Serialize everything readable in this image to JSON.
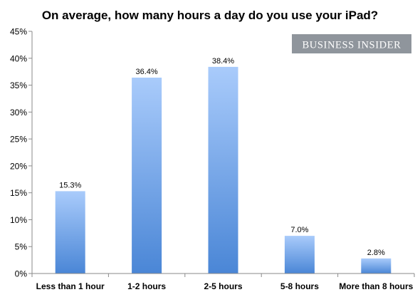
{
  "chart_data": {
    "type": "bar",
    "title": "On average, how many hours a day do you use your iPad?",
    "categories": [
      "Less than 1 hour",
      "1-2 hours",
      "2-5 hours",
      "5-8 hours",
      "More than 8 hours"
    ],
    "values": [
      15.3,
      36.4,
      38.4,
      7.0,
      2.8
    ],
    "data_labels": [
      "15.3%",
      "36.4%",
      "38.4%",
      "7.0%",
      "2.8%"
    ],
    "yticks": [
      0,
      5,
      10,
      15,
      20,
      25,
      30,
      35,
      40,
      45
    ],
    "ytick_labels": [
      "0%",
      "5%",
      "10%",
      "15%",
      "20%",
      "25%",
      "30%",
      "35%",
      "40%",
      "45%"
    ],
    "ylim": [
      0,
      45
    ],
    "xlabel": "",
    "ylabel": "",
    "grid": false,
    "legend": "none"
  },
  "watermark": {
    "text": "BUSINESS INSIDER",
    "background": "#8f959c",
    "color": "#ffffff"
  },
  "colors": {
    "bar_top": "#a9cbfb",
    "bar_bottom": "#4a86d6",
    "axis": "#8a8a8a",
    "text": "#000000"
  }
}
